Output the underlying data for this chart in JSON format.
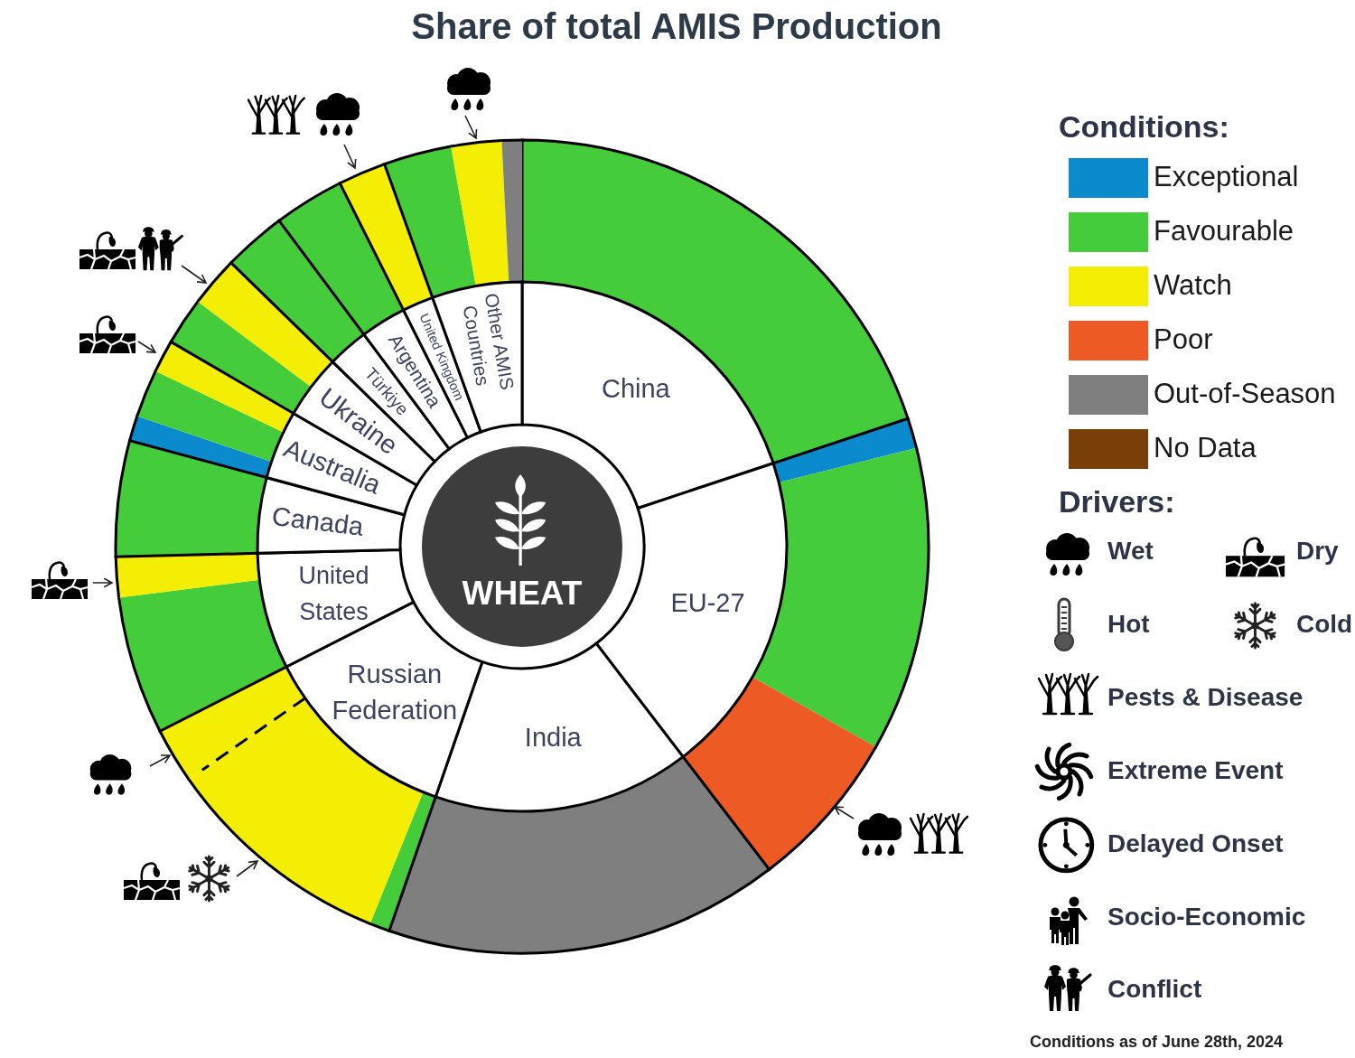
{
  "chart_data": [
    {
      "type": "donut",
      "title": "Share of total AMIS Production",
      "categories": [
        "China",
        "EU-27",
        "India",
        "Russian Federation",
        "United States",
        "Canada",
        "Australia",
        "Ukraine",
        "Türkiye",
        "Argentina",
        "United Kingdom",
        "Other AMIS Countries"
      ],
      "values": [
        19.9,
        19.7,
        15.7,
        12.2,
        7.1,
        4.6,
        4.2,
        3.9,
        2.5,
        2.8,
        1.9,
        5.5
      ],
      "colors": [
        "#ffffff",
        "#ffffff",
        "#ffffff",
        "#ffffff",
        "#ffffff",
        "#ffffff",
        "#ffffff",
        "#ffffff",
        "#ffffff",
        "#ffffff",
        "#ffffff",
        "#ffffff"
      ],
      "annotations": [
        "WHEAT"
      ]
    },
    {
      "type": "donut",
      "categories": [
        "Exceptional",
        "Favourable",
        "Watch",
        "Poor",
        "Out-of-Season",
        "No Data",
        null,
        null,
        null,
        null,
        null,
        null,
        null,
        null,
        null,
        null,
        null,
        null,
        null,
        null,
        null,
        null,
        null,
        null,
        null,
        null,
        null,
        null
      ],
      "values": [
        null,
        null,
        null,
        null,
        null,
        null,
        19.9,
        1.2,
        12.1,
        6.4,
        15.7,
        0.8,
        9.2,
        2.2,
        5.5,
        1.6,
        4.6,
        1,
        1.9,
        1.3,
        1.9,
        2.0,
        2.5,
        2.8,
        1.9,
        2.7,
        2.0,
        0.8
      ],
      "colors": [
        "#0b8bcd",
        "#44cc3a",
        "#f4ee04",
        "#ee5a24",
        "#7f7f7f",
        "#7a3e08",
        "#44cc3a",
        "#0b8bcd",
        "#44cc3a",
        "#ee5a24",
        "#7f7f7f",
        "#44cc3a",
        "#f4ee04",
        "#f4ee04",
        "#44cc3a",
        "#f4ee04",
        "#44cc3a",
        "#0b8bcd",
        "#44cc3a",
        "#f4ee04",
        "#44cc3a",
        "#f4ee04",
        "#44cc3a",
        "#44cc3a",
        "#f4ee04",
        "#44cc3a",
        "#f4ee04",
        "#7f7f7f"
      ],
      "legend_title": "Conditions:",
      "legend": "right",
      "annotations": [
        "Drivers:",
        "Wet",
        "Dry",
        "Hot",
        "Cold",
        "Pests & Disease",
        "Extreme Event",
        "Delayed Onset",
        "Socio-Economic",
        "Conflict",
        "Conditions as of June 28th, 2024"
      ]
    }
  ]
}
